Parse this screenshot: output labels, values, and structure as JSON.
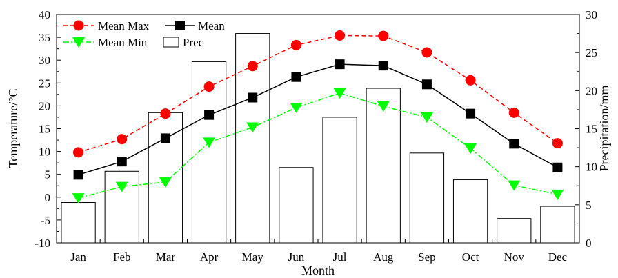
{
  "chart_data": {
    "type": "bar+line",
    "categories": [
      "Jan",
      "Feb",
      "Mar",
      "Apr",
      "May",
      "Jun",
      "Jul",
      "Aug",
      "Sep",
      "Oct",
      "Nov",
      "Dec"
    ],
    "xlabel": "Month",
    "ylabel_left": "Temperature/°C",
    "ylabel_right": "Precipitation/mm",
    "ylim_left": [
      -10,
      40
    ],
    "yticks_left": [
      -10,
      -5,
      0,
      5,
      10,
      15,
      20,
      25,
      30,
      35,
      40
    ],
    "ylim_right": [
      0,
      30
    ],
    "yticks_right": [
      0,
      5,
      10,
      15,
      20,
      25,
      30
    ],
    "legend_position": "top-left",
    "series": [
      {
        "name": "Mean Max",
        "axis": "left",
        "kind": "line",
        "marker": "circle",
        "line_style": "dashed",
        "color": "#ff0000",
        "values": [
          9.8,
          12.7,
          18.3,
          24.2,
          28.7,
          33.3,
          35.4,
          35.3,
          31.7,
          25.6,
          18.5,
          11.8
        ]
      },
      {
        "name": "Mean",
        "axis": "left",
        "kind": "line",
        "marker": "square",
        "line_style": "solid",
        "color": "#000000",
        "values": [
          4.9,
          7.8,
          12.9,
          18.0,
          21.8,
          26.3,
          29.1,
          28.8,
          24.7,
          18.3,
          11.7,
          6.5
        ]
      },
      {
        "name": "Mean Min",
        "axis": "left",
        "kind": "line",
        "marker": "triangle-down",
        "line_style": "dash-dot",
        "color": "#00ff00",
        "values": [
          -0.2,
          2.3,
          3.3,
          12.0,
          15.3,
          19.6,
          22.8,
          19.9,
          17.5,
          10.7,
          2.6,
          0.6
        ]
      },
      {
        "name": "Prec",
        "axis": "right",
        "kind": "bar",
        "color": "#ffffff",
        "values": [
          5.3,
          9.4,
          17.1,
          23.8,
          27.5,
          9.9,
          16.5,
          20.3,
          11.8,
          8.3,
          3.2,
          4.8
        ]
      }
    ]
  }
}
